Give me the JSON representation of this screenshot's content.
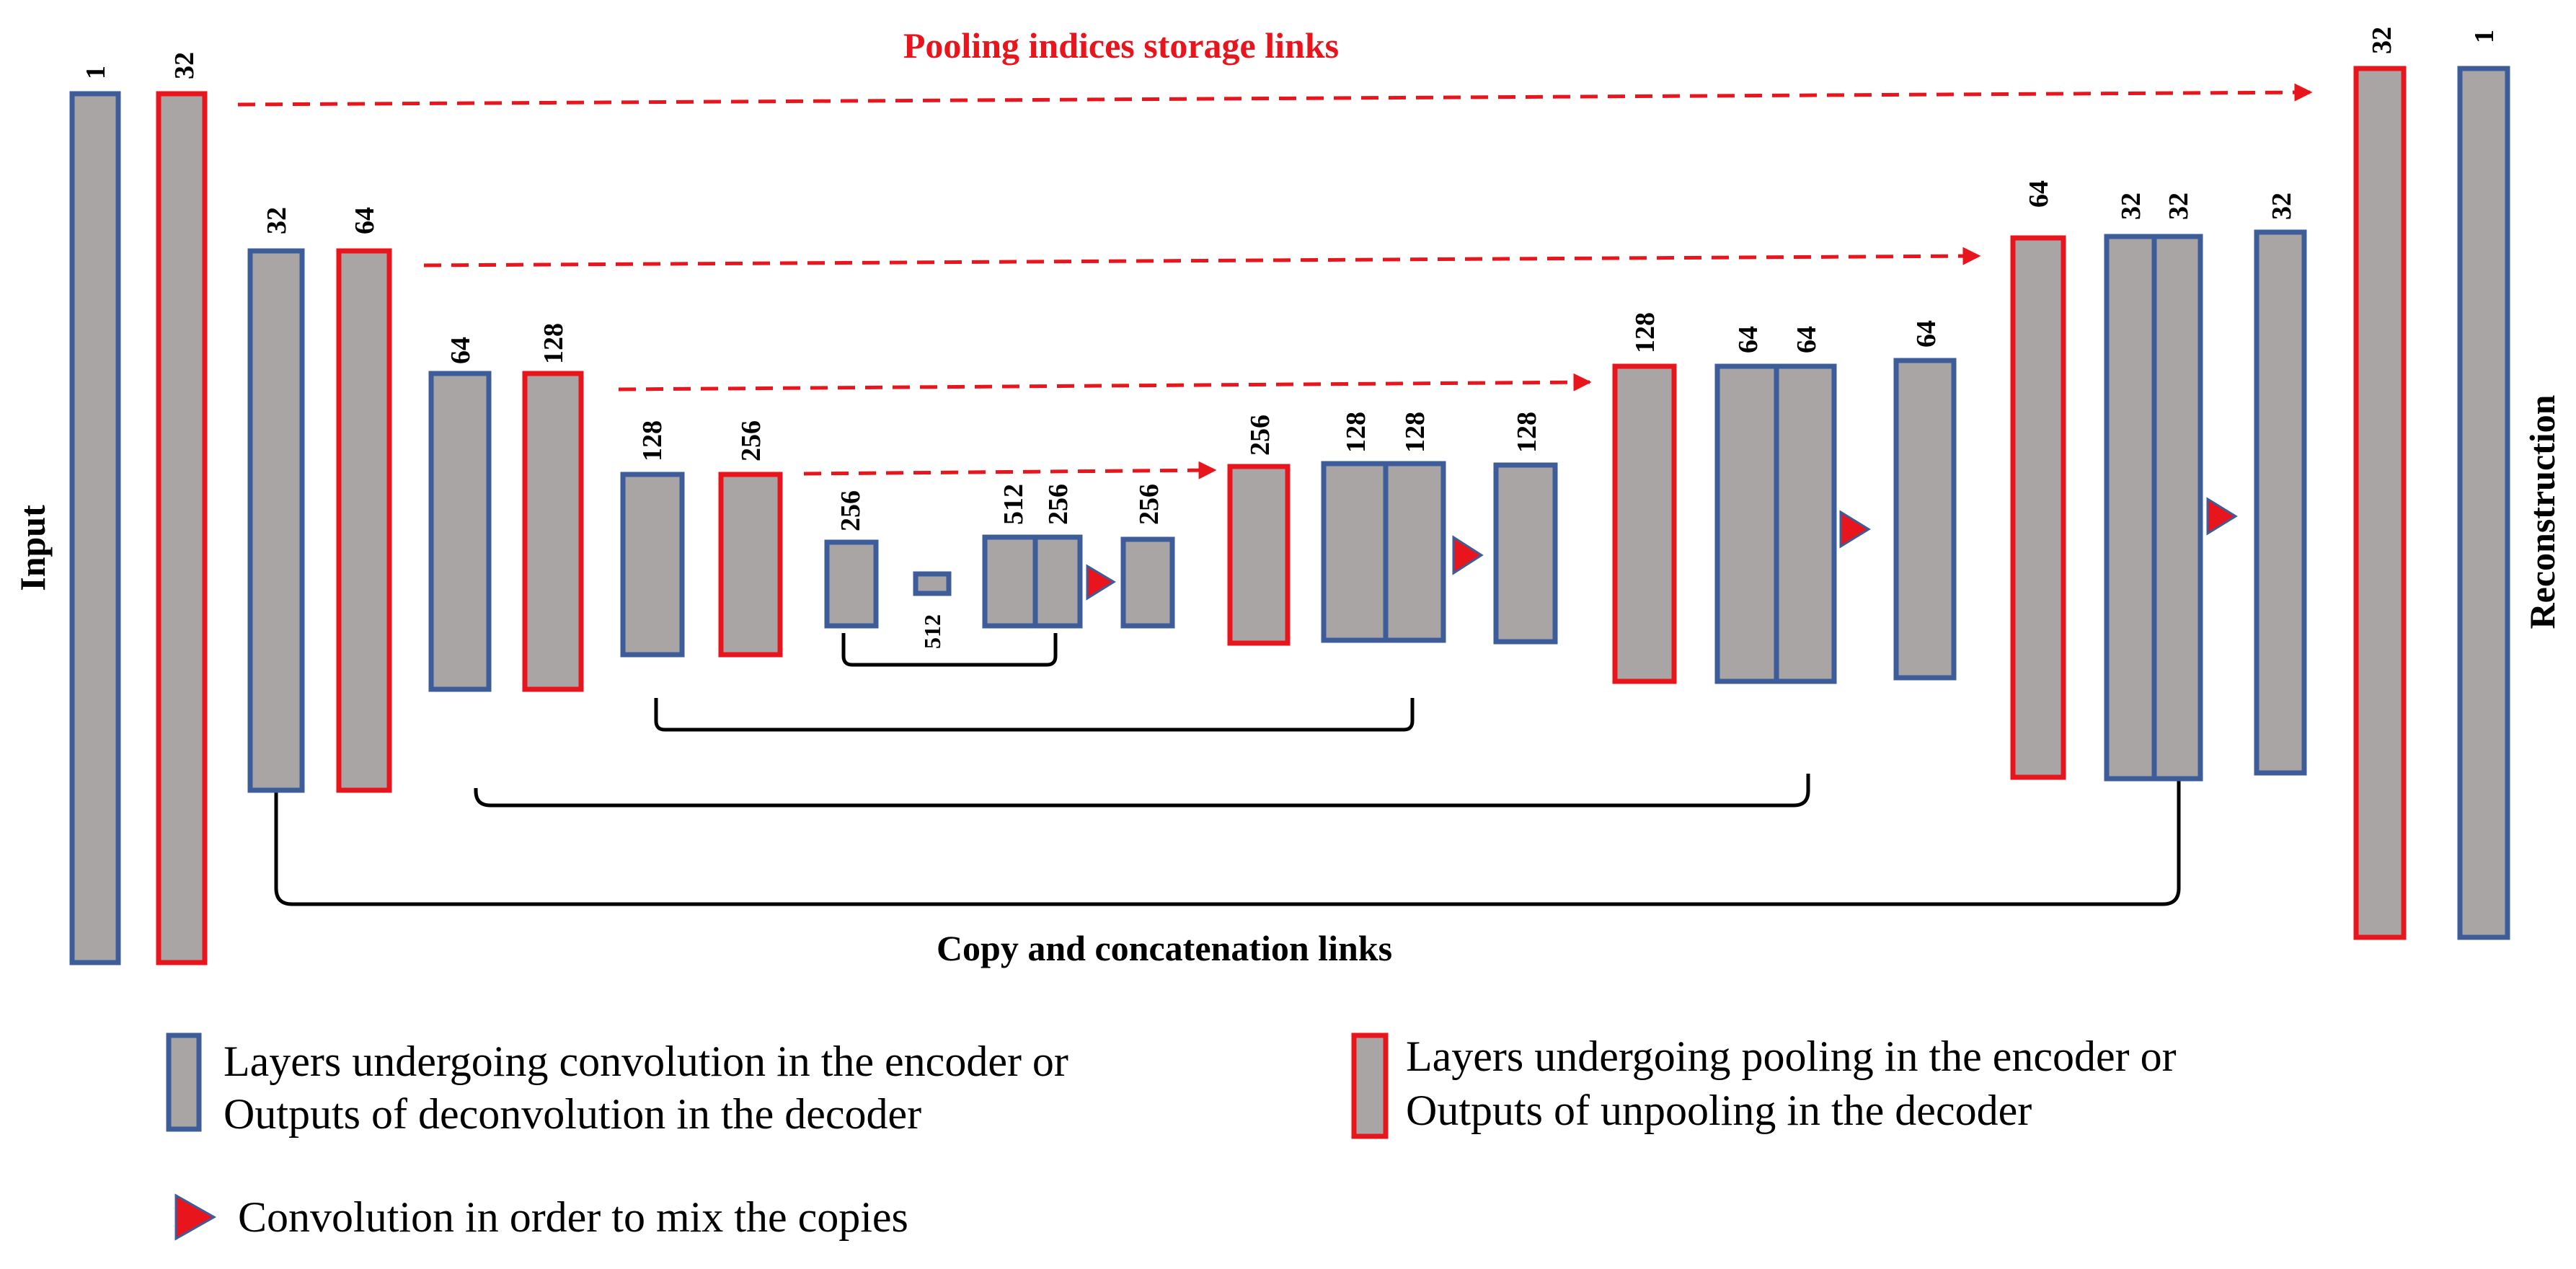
{
  "labels": {
    "pooling_links": "Pooling indices storage links",
    "copy_links": "Copy and concatenation links",
    "input": "Input",
    "reconstruction": "Reconstruction"
  },
  "channels": {
    "enc1_conv": "1",
    "enc1_pool": "32",
    "enc2_conv": "32",
    "enc2_pool": "64",
    "enc3_conv": "64",
    "enc3_pool": "128",
    "enc4_conv": "128",
    "enc4_pool": "256",
    "enc5_conv": "256",
    "bottleneck": "512",
    "bottleneck_up": "512",
    "bottleneck_copy": "256",
    "dec5_out": "256",
    "dec4_unpool": "256",
    "dec4_a": "128",
    "dec4_b": "128",
    "dec4_out": "128",
    "dec3_unpool": "128",
    "dec3_a": "64",
    "dec3_b": "64",
    "dec3_out": "64",
    "dec2_unpool": "64",
    "dec2_a": "32",
    "dec2_b": "32",
    "dec2_out": "32",
    "dec1_unpool": "32",
    "dec1_out": "1"
  },
  "legend": {
    "blue_line1": "Layers undergoing convolution in the encoder or",
    "blue_line2": "Outputs of deconvolution in the decoder",
    "red_line1": "Layers undergoing pooling in the encoder or",
    "red_line2": "Outputs of unpooling in the decoder",
    "triangle": "Convolution in order to mix the copies"
  },
  "colors": {
    "conv_border": "#3d5c9a",
    "pool_border": "#e8161c",
    "block_fill": "#a9a5a5"
  }
}
